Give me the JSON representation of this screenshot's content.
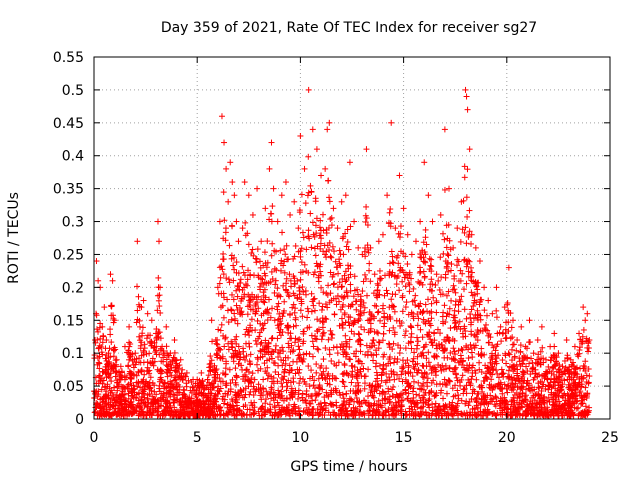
{
  "chart_data": {
    "type": "scatter",
    "title": "Day 359 of 2021, Rate Of TEC Index for receiver sg27",
    "xlabel": "GPS time / hours",
    "ylabel": "ROTI / TECUs",
    "xlim": [
      0,
      25
    ],
    "ylim": [
      0,
      0.55
    ],
    "x_ticks": [
      0,
      5,
      10,
      15,
      20,
      25
    ],
    "x_tick_labels": [
      "0",
      "5",
      "10",
      "15",
      "20",
      "25"
    ],
    "y_ticks": [
      0,
      0.05,
      0.1,
      0.15,
      0.2,
      0.25,
      0.3,
      0.35,
      0.4,
      0.45,
      0.5,
      0.55
    ],
    "y_tick_labels": [
      "0",
      "0.05",
      "0.1",
      "0.15",
      "0.2",
      "0.25",
      "0.3",
      "0.35",
      "0.4",
      "0.45",
      "0.5",
      "0.55"
    ],
    "grid": true,
    "marker": "+",
    "color": "#ff0000",
    "series": [
      {
        "name": "ROTI",
        "points": [
          [
            0.05,
            0.12
          ],
          [
            0.1,
            0.16
          ],
          [
            0.12,
            0.24
          ],
          [
            0.2,
            0.21
          ],
          [
            0.3,
            0.2
          ],
          [
            0.4,
            0.14
          ],
          [
            0.5,
            0.17
          ],
          [
            0.6,
            0.12
          ],
          [
            0.7,
            0.1
          ],
          [
            0.8,
            0.22
          ],
          [
            0.9,
            0.21
          ],
          [
            1.0,
            0.15
          ],
          [
            1.1,
            0.09
          ],
          [
            1.3,
            0.08
          ],
          [
            1.5,
            0.11
          ],
          [
            1.7,
            0.14
          ],
          [
            2.0,
            0.1
          ],
          [
            2.1,
            0.27
          ],
          [
            2.3,
            0.17
          ],
          [
            2.4,
            0.18
          ],
          [
            2.6,
            0.16
          ],
          [
            2.8,
            0.15
          ],
          [
            3.0,
            0.13
          ],
          [
            3.1,
            0.3
          ],
          [
            3.15,
            0.27
          ],
          [
            3.2,
            0.2
          ],
          [
            3.3,
            0.11
          ],
          [
            3.5,
            0.14
          ],
          [
            3.7,
            0.1
          ],
          [
            3.9,
            0.12
          ],
          [
            4.2,
            0.09
          ],
          [
            4.5,
            0.07
          ],
          [
            4.8,
            0.06
          ],
          [
            5.0,
            0.06
          ],
          [
            5.2,
            0.07
          ],
          [
            5.5,
            0.06
          ],
          [
            5.7,
            0.15
          ],
          [
            5.9,
            0.12
          ],
          [
            6.0,
            0.2
          ],
          [
            6.1,
            0.3
          ],
          [
            6.2,
            0.46
          ],
          [
            6.3,
            0.42
          ],
          [
            6.4,
            0.38
          ],
          [
            6.5,
            0.33
          ],
          [
            6.6,
            0.39
          ],
          [
            6.7,
            0.36
          ],
          [
            6.8,
            0.34
          ],
          [
            6.9,
            0.3
          ],
          [
            7.0,
            0.27
          ],
          [
            7.2,
            0.29
          ],
          [
            7.3,
            0.36
          ],
          [
            7.5,
            0.34
          ],
          [
            7.7,
            0.31
          ],
          [
            7.9,
            0.35
          ],
          [
            8.1,
            0.27
          ],
          [
            8.3,
            0.32
          ],
          [
            8.5,
            0.38
          ],
          [
            8.6,
            0.42
          ],
          [
            8.7,
            0.35
          ],
          [
            8.9,
            0.3
          ],
          [
            9.1,
            0.34
          ],
          [
            9.3,
            0.36
          ],
          [
            9.5,
            0.31
          ],
          [
            9.7,
            0.33
          ],
          [
            9.9,
            0.29
          ],
          [
            10.0,
            0.43
          ],
          [
            10.2,
            0.38
          ],
          [
            10.4,
            0.5
          ],
          [
            10.6,
            0.44
          ],
          [
            10.8,
            0.41
          ],
          [
            11.0,
            0.37
          ],
          [
            11.2,
            0.38
          ],
          [
            11.3,
            0.44
          ],
          [
            11.4,
            0.45
          ],
          [
            11.6,
            0.32
          ],
          [
            11.8,
            0.29
          ],
          [
            12.0,
            0.33
          ],
          [
            12.2,
            0.34
          ],
          [
            12.4,
            0.39
          ],
          [
            12.6,
            0.3
          ],
          [
            12.8,
            0.26
          ],
          [
            13.0,
            0.25
          ],
          [
            13.2,
            0.41
          ],
          [
            13.4,
            0.26
          ],
          [
            13.6,
            0.22
          ],
          [
            13.8,
            0.27
          ],
          [
            14.0,
            0.28
          ],
          [
            14.2,
            0.34
          ],
          [
            14.4,
            0.45
          ],
          [
            14.6,
            0.29
          ],
          [
            14.8,
            0.37
          ],
          [
            15.0,
            0.32
          ],
          [
            15.2,
            0.28
          ],
          [
            15.4,
            0.25
          ],
          [
            15.6,
            0.27
          ],
          [
            15.8,
            0.3
          ],
          [
            16.0,
            0.39
          ],
          [
            16.2,
            0.34
          ],
          [
            16.4,
            0.3
          ],
          [
            16.6,
            0.22
          ],
          [
            16.8,
            0.31
          ],
          [
            17.0,
            0.44
          ],
          [
            17.2,
            0.35
          ],
          [
            17.4,
            0.26
          ],
          [
            17.6,
            0.29
          ],
          [
            17.8,
            0.33
          ],
          [
            18.0,
            0.5
          ],
          [
            18.05,
            0.49
          ],
          [
            18.1,
            0.47
          ],
          [
            18.2,
            0.41
          ],
          [
            18.3,
            0.28
          ],
          [
            18.5,
            0.26
          ],
          [
            18.7,
            0.24
          ],
          [
            18.9,
            0.2
          ],
          [
            19.1,
            0.18
          ],
          [
            19.3,
            0.16
          ],
          [
            19.5,
            0.2
          ],
          [
            19.7,
            0.14
          ],
          [
            19.9,
            0.17
          ],
          [
            20.1,
            0.23
          ],
          [
            20.3,
            0.15
          ],
          [
            20.5,
            0.12
          ],
          [
            20.7,
            0.14
          ],
          [
            20.9,
            0.11
          ],
          [
            21.1,
            0.15
          ],
          [
            21.3,
            0.1
          ],
          [
            21.5,
            0.12
          ],
          [
            21.7,
            0.14
          ],
          [
            21.9,
            0.09
          ],
          [
            22.1,
            0.11
          ],
          [
            22.3,
            0.13
          ],
          [
            22.5,
            0.1
          ],
          [
            22.7,
            0.08
          ],
          [
            22.9,
            0.12
          ],
          [
            23.1,
            0.09
          ],
          [
            23.3,
            0.11
          ],
          [
            23.5,
            0.13
          ],
          [
            23.7,
            0.17
          ],
          [
            23.8,
            0.15
          ],
          [
            23.9,
            0.16
          ],
          [
            24.0,
            0.12
          ]
        ],
        "note": "Dense cloud of ROTI values (mostly 0.005-0.3 TECU/min) sampled across 0-24 h, with upper envelope and activity following the listed peaks."
      }
    ]
  }
}
